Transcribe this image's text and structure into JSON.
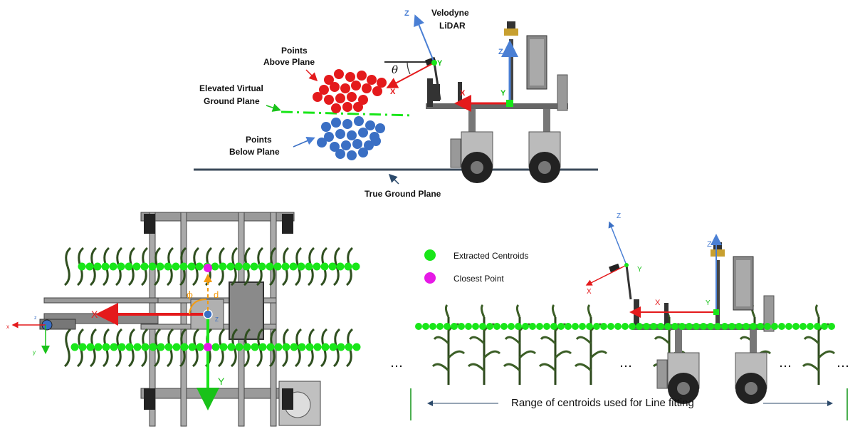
{
  "top_panel": {
    "velodyne_label_1": "Velodyne",
    "velodyne_label_2": "LiDAR",
    "points_above_1": "Points",
    "points_above_2": "Above Plane",
    "elevated_1": "Elevated Virtual",
    "elevated_2": "Ground Plane",
    "points_below_1": "Points",
    "points_below_2": "Below Plane",
    "true_ground": "True Ground Plane",
    "theta": "θ",
    "lidar_axes": {
      "z": "Z",
      "x": "X",
      "y": "Y"
    },
    "robot_axes": {
      "z": "Z",
      "x": "X",
      "y": "Y"
    }
  },
  "bottom_left": {
    "phi": "ϕ",
    "d": "d",
    "robot_axes": {
      "x": "X",
      "y": "Y",
      "z": "Z"
    },
    "small_axes": {
      "x": "x",
      "y": "y",
      "z": "z"
    }
  },
  "bottom_right": {
    "legend": [
      {
        "label": "Extracted Centroids",
        "color": "#19e619"
      },
      {
        "label": "Closest Point",
        "color": "#e619e6"
      }
    ],
    "range_label": "Range of centroids used for Line fitting",
    "ellipsis": "…",
    "lidar_axes": {
      "z": "Z",
      "x": "X",
      "y": "Y"
    },
    "robot_axes": {
      "z": "Z",
      "x": "X",
      "y": "Y"
    }
  },
  "colors": {
    "red_points": "#e41a1c",
    "blue_points": "#3a6fc4",
    "green": "#19e619",
    "magenta": "#e619e6",
    "x_axis": "#e41a1c",
    "y_axis": "#19c219",
    "z_axis": "#4a7fd4",
    "orange": "#f39c12"
  }
}
